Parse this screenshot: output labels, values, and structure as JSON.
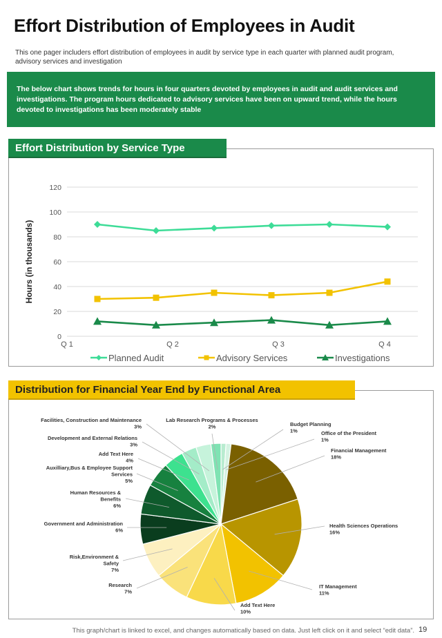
{
  "header": {
    "title": "Effort Distribution of Employees in Audit",
    "subtitle": "This one pager includers effort distribution of employees in audit by service type in each quarter with planned audit program, advisory services and investigation"
  },
  "banner": {
    "text": "The below chart shows trends for hours in four quarters devoted by employees in audit and audit services and investigations. The program hours dedicated to advisory services have been on upward trend, while the hours devoted to investigations has been moderately stable"
  },
  "section1": {
    "title": "Effort Distribution by Service Type"
  },
  "section2": {
    "title": "Distribution for Financial Year End by Functional Area"
  },
  "footer": {
    "note": "This graph/chart is linked to excel, and changes automatically based on data. Just left click on it and select “edit data”.",
    "page": "19"
  },
  "colors": {
    "green_accent": "#1a8a4a",
    "yellow_accent": "#f2c200"
  },
  "chart_data": [
    {
      "type": "line",
      "ylabel": "Hours (in thousands)",
      "xlabel": "",
      "ylim": [
        0,
        120
      ],
      "yticks": [
        0,
        20,
        40,
        60,
        80,
        100,
        120
      ],
      "categories": [
        "Q 1",
        "Q 2",
        "Q 3",
        "Q 4"
      ],
      "x_positions": [
        1,
        1.9,
        2.9,
        3.9
      ],
      "grid": true,
      "legend": "bottom",
      "series": [
        {
          "name": "Planned Audit",
          "values": [
            90,
            85,
            87,
            89,
            90,
            88
          ],
          "x": [
            1,
            1.55,
            2.1,
            2.6,
            3.15,
            3.65
          ],
          "color": "#3ddc97",
          "marker": "diamond"
        },
        {
          "name": "Advisory Services",
          "values": [
            30,
            31,
            35,
            33,
            35,
            44
          ],
          "x": [
            1,
            1.55,
            2.1,
            2.6,
            3.15,
            3.65
          ],
          "color": "#f2c200",
          "marker": "square"
        },
        {
          "name": "Investigations",
          "values": [
            12,
            9,
            11,
            13,
            9,
            12
          ],
          "x": [
            1,
            1.55,
            2.1,
            2.6,
            3.15,
            3.65
          ],
          "color": "#1a8a4a",
          "marker": "triangle"
        }
      ]
    },
    {
      "type": "pie",
      "slices": [
        {
          "label": "Budget Planning",
          "value": 1,
          "pct": "1%",
          "color": "#b8ecd0"
        },
        {
          "label": "Office of the President",
          "value": 1,
          "pct": "1%",
          "color": "#d4f3e2"
        },
        {
          "label": "Financial Management",
          "value": 18,
          "pct": "18%",
          "color": "#7a6000"
        },
        {
          "label": "Health Sciences Operations",
          "value": 16,
          "pct": "16%",
          "color": "#b89500"
        },
        {
          "label": "IT Management",
          "value": 11,
          "pct": "11%",
          "color": "#f2c200"
        },
        {
          "label": "Add Text Here",
          "value": 10,
          "pct": "10%",
          "color": "#f8d94a"
        },
        {
          "label": "Research",
          "value": 7,
          "pct": "7%",
          "color": "#fae27a"
        },
        {
          "label": "Risk,Environment & Safety",
          "value": 7,
          "pct": "7%",
          "color": "#fdf0c0"
        },
        {
          "label": "Government and Administration",
          "value": 6,
          "pct": "6%",
          "color": "#0a3d1e"
        },
        {
          "label": "Human Resources & Benefits",
          "value": 6,
          "pct": "6%",
          "color": "#0f5a2c"
        },
        {
          "label": "Auxilliary,Bus & Employee Support Services",
          "value": 5,
          "pct": "5%",
          "color": "#17813f"
        },
        {
          "label": "Add Text Here",
          "value": 4,
          "pct": "4%",
          "color": "#3de18f"
        },
        {
          "label": "Development and External Relations",
          "value": 3,
          "pct": "3%",
          "color": "#a4ecc8"
        },
        {
          "label": "Facilities, Construction and Maintenance",
          "value": 3,
          "pct": "3%",
          "color": "#c6f3db"
        },
        {
          "label": "Lab Research Programs & Processes",
          "value": 2,
          "pct": "2%",
          "color": "#7fe3b3"
        }
      ]
    }
  ]
}
